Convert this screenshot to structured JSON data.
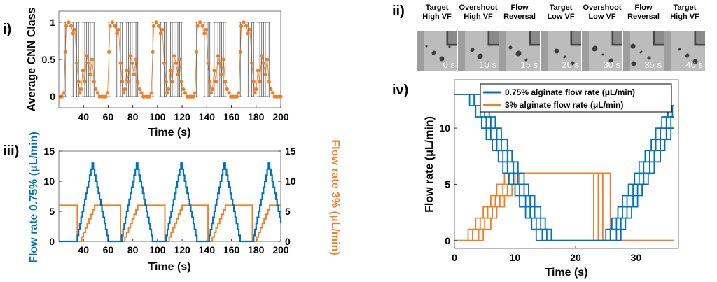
{
  "panels": {
    "i": "i)",
    "ii": "ii)",
    "iii": "iii)",
    "iv": "iv)"
  },
  "colors": {
    "blue": "#0072BD",
    "orange": "#F07F26",
    "black": "#000000"
  },
  "chart_data": [
    {
      "id": "panel-i",
      "type": "scatter",
      "xlabel": "Time (s)",
      "ylabel": "Average CNN Class",
      "xlim": [
        20,
        200
      ],
      "ylim": [
        -0.15,
        1.15
      ],
      "xticks": [
        "40",
        "60",
        "80",
        "100",
        "120",
        "140",
        "160",
        "180",
        "200"
      ],
      "yticks": [
        "0",
        "0.5",
        "1"
      ],
      "cycle_period_s": 35.5,
      "cycle_start_s": 21,
      "cycle_profile": [
        {
          "t": 0.0,
          "y": 0.0
        },
        {
          "t": 1.5,
          "y": 0.0
        },
        {
          "t": 3.0,
          "y": 0.05
        },
        {
          "t": 4.2,
          "y": 0.6
        },
        {
          "t": 5.0,
          "y": 0.95
        },
        {
          "t": 7.0,
          "y": 1.0
        },
        {
          "t": 9.0,
          "y": 0.95
        },
        {
          "t": 10.5,
          "y": 0.85
        },
        {
          "t": 12.0,
          "y": 0.9
        },
        {
          "t": 13.5,
          "y": 0.45
        },
        {
          "t": 15.0,
          "y": 0.2
        },
        {
          "t": 16.0,
          "y": 0.05
        },
        {
          "t": 17.0,
          "y": 0.1
        },
        {
          "t": 18.5,
          "y": 0.35
        },
        {
          "t": 20.0,
          "y": 0.2
        },
        {
          "t": 21.5,
          "y": 0.55
        },
        {
          "t": 23.0,
          "y": 0.45
        },
        {
          "t": 24.5,
          "y": 0.3
        },
        {
          "t": 26.0,
          "y": 0.5
        },
        {
          "t": 27.5,
          "y": 0.2
        },
        {
          "t": 29.0,
          "y": 0.1
        },
        {
          "t": 30.5,
          "y": 0.05
        },
        {
          "t": 32.0,
          "y": 0.0
        },
        {
          "t": 34.0,
          "y": 0.0
        }
      ],
      "errorbar": {
        "center_min": 0.1,
        "center_max": 0.9,
        "low": 0.0,
        "high": 1.0
      }
    },
    {
      "id": "panel-iii",
      "type": "line",
      "xlabel": "Time (s)",
      "ylabel_left": "Flow rate 0.75% (μL/min)",
      "ylabel_right": "Flow rate 3% (μL/min)",
      "xlim": [
        20,
        200
      ],
      "ylim": [
        0,
        15
      ],
      "xticks": [
        "40",
        "60",
        "80",
        "100",
        "120",
        "140",
        "160",
        "180",
        "200"
      ],
      "yticks": [
        "0",
        "5",
        "10",
        "15"
      ],
      "peaks_075_s": [
        47,
        83,
        119,
        154,
        190
      ],
      "peak_value_075": 13,
      "ramp_half_width_s": 13,
      "series_3pct": {
        "level": 6,
        "drop_times_s": [
          35,
          70,
          106,
          141,
          177
        ],
        "rise_duration_s": 12,
        "step_s": 1.5
      }
    },
    {
      "id": "panel-iv",
      "type": "line",
      "xlabel": "Time (s)",
      "ylabel": "Flow rate (μL/min)",
      "xlim": [
        0,
        37
      ],
      "ylim": [
        -0.7,
        14.3
      ],
      "xticks": [
        "0",
        "10",
        "20",
        "30"
      ],
      "yticks": [
        "0",
        "5",
        "10"
      ],
      "legend": [
        "0.75% alginate flow rate (μL/min)",
        "3% alginate flow rate (μL/min)"
      ],
      "series_075_offsets_s": [
        0,
        0.8,
        1.6,
        2.4
      ],
      "series_3pct_offsets_s": [
        0,
        0.8,
        1.6,
        2.4
      ],
      "series_3pct_drop_times_s": [
        22.8,
        23.6,
        24.4,
        25.6
      ]
    }
  ],
  "frames": {
    "labels": [
      [
        "Target",
        "High VF"
      ],
      [
        "Overshoot",
        "High VF"
      ],
      [
        "Flow",
        "Reversal"
      ],
      [
        "Target",
        "Low VF"
      ],
      [
        "Overshoot",
        "Low VF"
      ],
      [
        "Flow",
        "Reversal"
      ],
      [
        "Target",
        "High VF"
      ]
    ],
    "times": [
      "0 s",
      "10 s",
      "15 s",
      "20 s",
      "30 s",
      "35 s",
      "40 s"
    ]
  }
}
